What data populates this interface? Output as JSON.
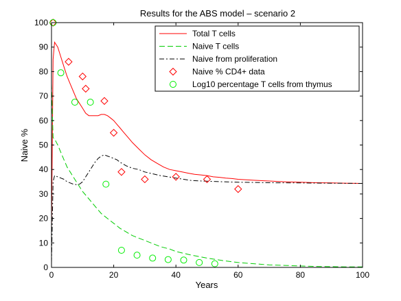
{
  "chart_data": {
    "type": "line",
    "title": "Results for the ABS model – scenario 2",
    "xlabel": "Years",
    "ylabel": "Naive %",
    "xlim": [
      0,
      100
    ],
    "ylim": [
      0,
      100
    ],
    "xticks": [
      "0",
      "20",
      "40",
      "60",
      "80",
      "100"
    ],
    "yticks": [
      "0",
      "10",
      "20",
      "30",
      "40",
      "50",
      "60",
      "70",
      "80",
      "90",
      "100"
    ],
    "grid": false,
    "legend_position": "top-right",
    "series": [
      {
        "name": "Total T cells",
        "style": "solid",
        "color": "#ff0000",
        "x": [
          0,
          0.5,
          1,
          2,
          3,
          4,
          5,
          6,
          7,
          8,
          9,
          10,
          11,
          12,
          13,
          14,
          15,
          16,
          17,
          18,
          19,
          20,
          21,
          22,
          23,
          24,
          25,
          26,
          28,
          30,
          32,
          34,
          36,
          38,
          40,
          42,
          44,
          46,
          48,
          50,
          52,
          54,
          56,
          58,
          60,
          65,
          70,
          75,
          80,
          85,
          90,
          95,
          100
        ],
        "y": [
          15,
          85,
          92,
          90,
          86,
          82,
          78,
          75,
          72,
          69,
          67,
          65,
          63,
          62,
          62,
          62,
          62,
          62.5,
          62.5,
          62,
          61,
          60,
          58.5,
          57,
          55.5,
          54,
          52.5,
          51,
          48.5,
          46,
          44,
          42.5,
          41,
          40,
          39.5,
          39,
          38.5,
          38,
          37.8,
          37.5,
          37,
          36.8,
          36.5,
          36.3,
          36,
          35.6,
          35.3,
          35,
          34.8,
          34.6,
          34.5,
          34.4,
          34.3
        ]
      },
      {
        "name": "Naive T cells",
        "style": "dashed",
        "color": "#00cc00",
        "x": [
          0,
          0.5,
          1,
          2,
          3,
          4,
          5,
          6,
          8,
          10,
          12,
          14,
          16,
          18,
          20,
          22,
          24,
          26,
          28,
          30,
          32,
          35,
          38,
          40,
          45,
          50,
          55,
          60,
          65,
          70,
          75,
          80,
          85,
          90,
          95,
          100
        ],
        "y": [
          75,
          53,
          52.5,
          50,
          47,
          44,
          41,
          39,
          35,
          31,
          28,
          25,
          22,
          20,
          18,
          16,
          14.5,
          13,
          12,
          11,
          10,
          8.5,
          7.5,
          6.5,
          5,
          3.8,
          2.8,
          2,
          1.5,
          1,
          0.8,
          0.6,
          0.4,
          0.3,
          0.2,
          0.2
        ]
      },
      {
        "name": "Naive from proliferation",
        "style": "dashdot",
        "color": "#000000",
        "x": [
          0,
          0.5,
          1,
          2,
          3,
          4,
          5,
          6,
          7,
          8,
          9,
          10,
          11,
          12,
          13,
          14,
          15,
          16,
          17,
          18,
          19,
          20,
          21,
          22,
          24,
          26,
          28,
          30,
          35,
          40,
          45,
          50,
          55,
          60,
          65,
          70,
          80,
          90,
          100
        ],
        "y": [
          2,
          35,
          37.5,
          37,
          36.5,
          36,
          35,
          34.5,
          34,
          33.8,
          34,
          35,
          37,
          39,
          41,
          43,
          44.5,
          45.5,
          46,
          45.5,
          45,
          44.5,
          44,
          43,
          41.5,
          40.5,
          40,
          39,
          37.5,
          36.5,
          35.5,
          35.2,
          35,
          34.8,
          34.7,
          34.6,
          34.5,
          34.4,
          34.3
        ]
      },
      {
        "name": "Naive % CD4+ data",
        "style": "marker-diamond",
        "color": "#ff0000",
        "x": [
          0.5,
          5.5,
          10,
          11,
          17,
          20,
          22.5,
          30,
          40,
          50,
          60
        ],
        "y": [
          100,
          84,
          78,
          73,
          68,
          55,
          39,
          36,
          37,
          36,
          32
        ]
      },
      {
        "name": "Log10 percentage T cells from thymus",
        "style": "marker-circle",
        "color": "#00ee00",
        "x": [
          0.5,
          3,
          7.5,
          12.5,
          17.5,
          22.5,
          27.5,
          32.5,
          37.5,
          42.5,
          47.5,
          52.5
        ],
        "y": [
          100,
          79.5,
          67.5,
          67.5,
          34,
          7,
          5,
          3.8,
          3.2,
          3,
          2,
          1.5
        ]
      }
    ]
  }
}
